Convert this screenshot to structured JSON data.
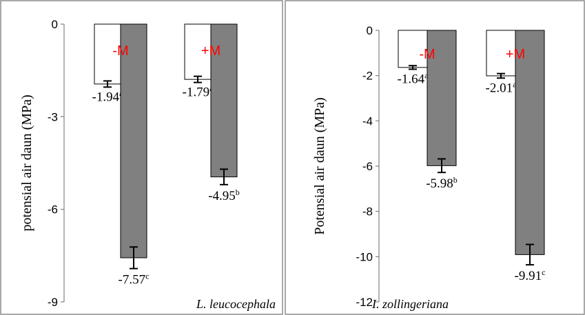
{
  "chart_data": [
    {
      "type": "bar",
      "species_label": "L. leucocephala",
      "ylabel": "potensial air daun (MPa)",
      "ylim": [
        -9,
        0
      ],
      "yticks": [
        0,
        -3,
        -6,
        -9
      ],
      "grid": false,
      "groups": [
        {
          "label": "-M",
          "label_color": "#ff0000",
          "bars": [
            {
              "fill": "#ffffff",
              "value": -1.94,
              "error": 0.1,
              "value_label": "-1.94",
              "letter": "a"
            },
            {
              "fill": "#808080",
              "value": -7.57,
              "error": 0.35
            }
          ]
        },
        {
          "label": "+M",
          "label_color": "#ff0000",
          "bars": [
            {
              "fill": "#ffffff",
              "value": -1.79,
              "error": 0.1,
              "value_label": "-1.79",
              "letter": "a"
            },
            {
              "fill": "#808080",
              "value": -4.95,
              "error": 0.25
            }
          ]
        }
      ],
      "extra_labels": [
        {
          "value_label": "-7.57",
          "letter": "c",
          "at_value": -7.57
        },
        {
          "value_label": "-4.95",
          "letter": "b",
          "at_value": -4.95
        }
      ]
    },
    {
      "type": "bar",
      "species_label": "I. zollingeriana",
      "ylabel": "Potensial air daun (MPa)",
      "ylim": [
        -12,
        0
      ],
      "yticks": [
        0,
        -2,
        -4,
        -6,
        -8,
        -10,
        -12
      ],
      "grid": false,
      "groups": [
        {
          "label": "-M",
          "label_color": "#ff0000",
          "bars": [
            {
              "fill": "#ffffff",
              "value": -1.64,
              "error": 0.08,
              "value_label": "-1.64",
              "letter": "a"
            },
            {
              "fill": "#808080",
              "value": -5.98,
              "error": 0.3
            }
          ]
        },
        {
          "label": "+M",
          "label_color": "#ff0000",
          "bars": [
            {
              "fill": "#ffffff",
              "value": -2.01,
              "error": 0.1,
              "value_label": "-2.01",
              "letter": "a"
            },
            {
              "fill": "#808080",
              "value": -9.91,
              "error": 0.45
            }
          ]
        }
      ],
      "extra_labels": [
        {
          "value_label": "-5.98",
          "letter": "b",
          "at_value": -5.98
        },
        {
          "value_label": "-9.91",
          "letter": "c",
          "at_value": -9.91
        }
      ]
    }
  ]
}
